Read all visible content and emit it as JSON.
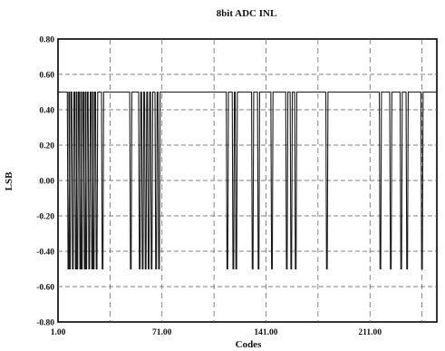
{
  "chart_data": {
    "type": "line",
    "title": "8bit ADC INL",
    "xlabel": "Codes",
    "ylabel": "LSB",
    "xlim": [
      1,
      256
    ],
    "ylim": [
      -0.8,
      0.8
    ],
    "x_ticks": [
      "1.00",
      "71.00",
      "141.00",
      "211.00"
    ],
    "y_ticks": [
      "0.80",
      "0.60",
      "0.40",
      "0.20",
      "0.00",
      "-0.20",
      "-0.40",
      "-0.60",
      "-0.80"
    ],
    "grid": true,
    "high_value": 0.5,
    "low_value": -0.5,
    "drop_codes": [
      8,
      9,
      11,
      13,
      14,
      16,
      17,
      19,
      20,
      22,
      24,
      25,
      27,
      31,
      50,
      56,
      58,
      60,
      62,
      64,
      67,
      69,
      115,
      119,
      121,
      132,
      136,
      145,
      155,
      158,
      161,
      182,
      218,
      225,
      232,
      236,
      246
    ]
  },
  "colors": {
    "line": "#1a1a1a",
    "grid": "#555555",
    "frame": "#000000"
  }
}
